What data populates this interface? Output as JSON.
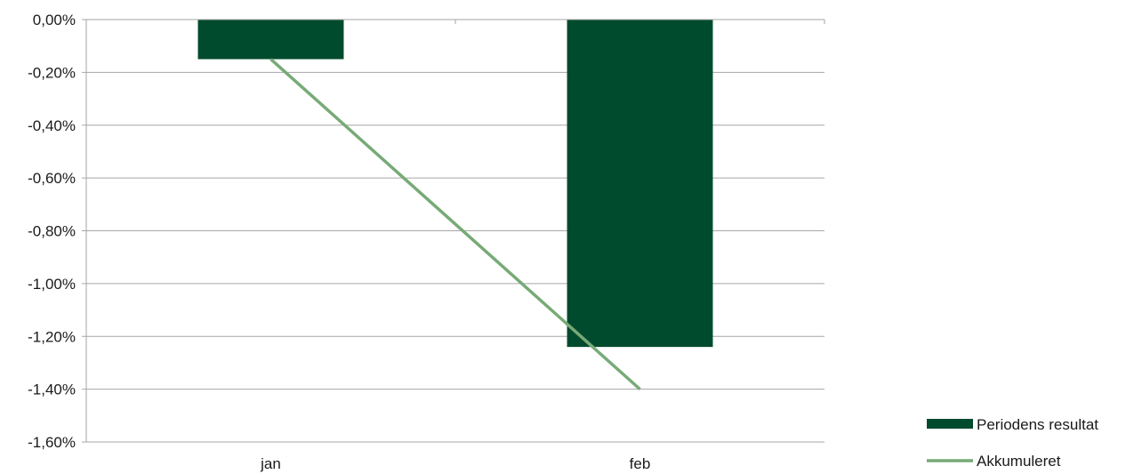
{
  "chart_data": {
    "type": "bar",
    "categories": [
      "jan",
      "feb"
    ],
    "series": [
      {
        "name": "Periodens resultat",
        "type": "bar",
        "values": [
          -0.15,
          -1.24
        ],
        "color": "#004b2d"
      },
      {
        "name": "Akkumuleret",
        "type": "line",
        "values": [
          -0.15,
          -1.4
        ],
        "color": "#77aa77"
      }
    ],
    "ylim": [
      -1.6,
      0.0
    ],
    "yticks": [
      0.0,
      -0.2,
      -0.4,
      -0.6,
      -0.8,
      -1.0,
      -1.2,
      -1.4,
      -1.6
    ],
    "ytick_labels": [
      "0,00%",
      "-0,20%",
      "-0,40%",
      "-0,60%",
      "-0,80%",
      "-1,00%",
      "-1,20%",
      "-1,40%",
      "-1,60%"
    ],
    "grid": true,
    "legend_position": "bottom-right",
    "gridline_color": "#a6a6a6",
    "axis_color": "#a6a6a6"
  }
}
